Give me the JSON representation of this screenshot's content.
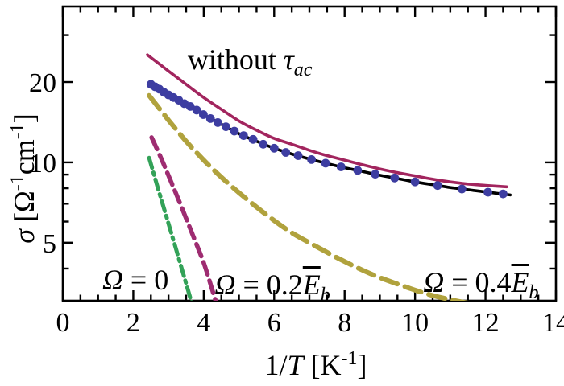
{
  "figure": {
    "background": "#ffffff",
    "frame_color": "#000000"
  },
  "axes": {
    "x": {
      "title_parts": [
        {
          "t": "1/",
          "s": "plain"
        },
        {
          "t": "T",
          "s": "it"
        },
        {
          "t": " [K",
          "s": "plain"
        },
        {
          "t": "-1",
          "s": "sup"
        },
        {
          "t": "]",
          "s": "plain"
        }
      ],
      "tick_values": [
        0,
        2,
        4,
        6,
        8,
        10,
        12,
        14
      ],
      "tick_labels": [
        "0",
        "2",
        "4",
        "6",
        "8",
        "10",
        "12",
        "14"
      ],
      "minor_step": 0.5
    },
    "y": {
      "title_parts": [
        {
          "t": "σ",
          "s": "it"
        },
        {
          "t": " [Ω",
          "s": "plain"
        },
        {
          "t": "-1",
          "s": "sup"
        },
        {
          "t": "cm",
          "s": "plain"
        },
        {
          "t": "-1",
          "s": "sup"
        },
        {
          "t": "]",
          "s": "plain"
        }
      ],
      "scale": "log",
      "tick_values": [
        5,
        10,
        20
      ],
      "tick_labels": [
        "5",
        "10",
        "20"
      ],
      "minor_ticks": [
        4,
        6,
        7,
        8,
        9,
        30
      ]
    }
  },
  "chart_data": {
    "type": "line",
    "title": "",
    "xlabel": "1/T [K^-1]",
    "ylabel": "sigma [Ohm^-1 cm^-1]",
    "x_range": [
      0,
      14
    ],
    "y_range": [
      3.03,
      38.4
    ],
    "y_scale": "log",
    "grid": false,
    "legend": "none (labels annotated on plot)",
    "series": [
      {
        "name": "omega-0.4Eb-curve",
        "label": "Omega = 0.4 Eb (dashed)",
        "style": "dashed",
        "dash": "21 10",
        "color": "#b0a23d",
        "width": 6,
        "points": [
          [
            2.45,
            17.8
          ],
          [
            3,
            14.4
          ],
          [
            3.5,
            12.0
          ],
          [
            4,
            10.2
          ],
          [
            4.5,
            8.8
          ],
          [
            5,
            7.7
          ],
          [
            5.5,
            6.8
          ],
          [
            6,
            6.05
          ],
          [
            6.5,
            5.45
          ],
          [
            7,
            5.0
          ],
          [
            7.5,
            4.6
          ],
          [
            8,
            4.25
          ],
          [
            8.5,
            3.95
          ],
          [
            9,
            3.7
          ],
          [
            9.5,
            3.5
          ],
          [
            10,
            3.32
          ],
          [
            10.5,
            3.17
          ],
          [
            11,
            3.06
          ],
          [
            11.5,
            2.97
          ],
          [
            12,
            2.9
          ]
        ]
      },
      {
        "name": "omega-0.2Eb-curve",
        "label": "Omega = 0.2 Eb (dashed)",
        "style": "dashed",
        "dash": "16 8",
        "color": "#9e2c71",
        "width": 5.5,
        "points": [
          [
            2.52,
            12.4
          ],
          [
            2.8,
            10.3
          ],
          [
            3.1,
            8.3
          ],
          [
            3.4,
            6.65
          ],
          [
            3.7,
            5.3
          ],
          [
            4.0,
            4.2
          ],
          [
            4.25,
            3.3
          ],
          [
            4.4,
            2.85
          ]
        ]
      },
      {
        "name": "omega-0-curve",
        "label": "Omega = 0 (dash-dot)",
        "style": "dashdot",
        "dash": "13 6 3 6",
        "color": "#33a258",
        "width": 5,
        "points": [
          [
            2.45,
            10.4
          ],
          [
            2.7,
            8.0
          ],
          [
            2.95,
            6.2
          ],
          [
            3.2,
            4.8
          ],
          [
            3.45,
            3.7
          ],
          [
            3.7,
            2.85
          ]
        ]
      },
      {
        "name": "fit-with-tau-ac-curve",
        "label": "theory with tau_ac (solid black)",
        "style": "solid",
        "dash": "",
        "color": "#000000",
        "width": 3.6,
        "points": [
          [
            2.45,
            19.9
          ],
          [
            3,
            17.9
          ],
          [
            3.5,
            16.5
          ],
          [
            4,
            15.1
          ],
          [
            4.5,
            13.9
          ],
          [
            5,
            12.8
          ],
          [
            5.5,
            12.0
          ],
          [
            6,
            11.3
          ],
          [
            6.5,
            10.75
          ],
          [
            7,
            10.3
          ],
          [
            7.5,
            9.9
          ],
          [
            8,
            9.55
          ],
          [
            8.5,
            9.25
          ],
          [
            9,
            8.95
          ],
          [
            9.5,
            8.7
          ],
          [
            10,
            8.45
          ],
          [
            10.5,
            8.25
          ],
          [
            11,
            8.05
          ],
          [
            11.5,
            7.9
          ],
          [
            12,
            7.75
          ],
          [
            12.7,
            7.55
          ]
        ]
      },
      {
        "name": "without-tau-ac-curve",
        "label": "without tau_ac (solid purple)",
        "style": "solid",
        "dash": "",
        "color": "#a2255e",
        "width": 3.6,
        "points": [
          [
            2.4,
            25.3
          ],
          [
            3,
            22.0
          ],
          [
            3.5,
            19.6
          ],
          [
            4,
            17.5
          ],
          [
            4.5,
            15.8
          ],
          [
            5,
            14.3
          ],
          [
            5.5,
            13.2
          ],
          [
            6,
            12.3
          ],
          [
            6.5,
            11.7
          ],
          [
            7,
            11.1
          ],
          [
            7.5,
            10.6
          ],
          [
            8,
            10.2
          ],
          [
            8.5,
            9.8
          ],
          [
            9,
            9.45
          ],
          [
            9.5,
            9.15
          ],
          [
            10,
            8.9
          ],
          [
            10.5,
            8.65
          ],
          [
            11,
            8.45
          ],
          [
            11.5,
            8.3
          ],
          [
            12,
            8.2
          ],
          [
            12.6,
            8.1
          ]
        ]
      },
      {
        "name": "data-points",
        "label": "data (blue circles)",
        "style": "scatter",
        "dash": "",
        "color": "#3d3da1",
        "radius": 5.4,
        "points": [
          [
            2.5,
            19.6
          ],
          [
            2.62,
            19.2
          ],
          [
            2.74,
            18.8
          ],
          [
            2.87,
            18.3
          ],
          [
            3.0,
            17.9
          ],
          [
            3.14,
            17.5
          ],
          [
            3.29,
            17.1
          ],
          [
            3.45,
            16.6
          ],
          [
            3.62,
            16.2
          ],
          [
            3.8,
            15.7
          ],
          [
            3.99,
            15.1
          ],
          [
            4.19,
            14.6
          ],
          [
            4.4,
            14.1
          ],
          [
            4.63,
            13.6
          ],
          [
            4.87,
            13.1
          ],
          [
            5.13,
            12.6
          ],
          [
            5.4,
            12.2
          ],
          [
            5.69,
            11.7
          ],
          [
            6.0,
            11.3
          ],
          [
            6.33,
            10.9
          ],
          [
            6.68,
            10.6
          ],
          [
            7.06,
            10.25
          ],
          [
            7.46,
            9.93
          ],
          [
            7.9,
            9.62
          ],
          [
            8.37,
            9.33
          ],
          [
            8.87,
            9.03
          ],
          [
            9.42,
            8.74
          ],
          [
            10.0,
            8.45
          ],
          [
            10.64,
            8.19
          ],
          [
            11.33,
            7.95
          ],
          [
            12.07,
            7.73
          ],
          [
            12.5,
            7.62
          ]
        ]
      }
    ],
    "annotations": [
      {
        "name": "without-tau-label",
        "parts": [
          {
            "t": "without ",
            "s": "plain"
          },
          {
            "t": "τ",
            "s": "it"
          },
          {
            "t": "ac",
            "s": "sub"
          }
        ],
        "x": 5.31,
        "y": 24.3
      },
      {
        "name": "omega-0-label",
        "parts": [
          {
            "t": "Ω",
            "s": "it"
          },
          {
            "t": " = 0",
            "s": "plain"
          }
        ],
        "x": 2.06,
        "y": 3.62
      },
      {
        "name": "omega-0.2Eb-label",
        "parts": [
          {
            "t": "Ω",
            "s": "it"
          },
          {
            "t": " = 0.2",
            "s": "plain"
          },
          {
            "t": "E",
            "s": "it-ov"
          },
          {
            "t": "b",
            "s": "sub"
          }
        ],
        "x": 5.95,
        "y": 3.47
      },
      {
        "name": "omega-0.4Eb-label",
        "parts": [
          {
            "t": "Ω",
            "s": "it"
          },
          {
            "t": " = 0.4",
            "s": "plain"
          },
          {
            "t": "E",
            "s": "it-ov"
          },
          {
            "t": "b",
            "s": "sub"
          }
        ],
        "x": 11.87,
        "y": 3.55
      }
    ]
  }
}
